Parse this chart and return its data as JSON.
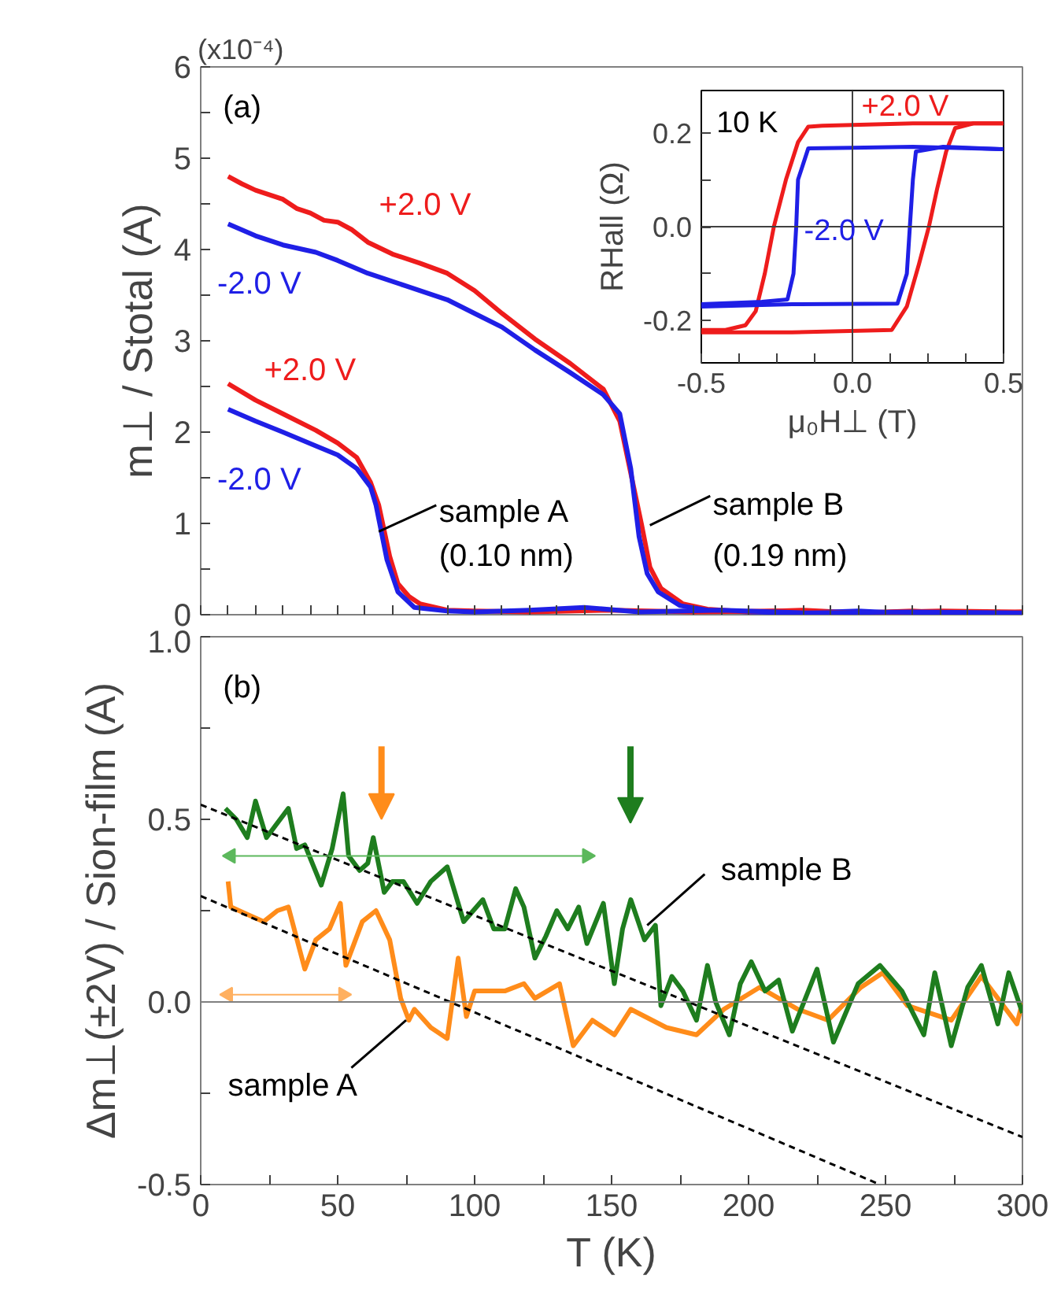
{
  "chart_data": [
    {
      "type": "line",
      "ylabel": "m⊥ / Stotal (A)",
      "xlim": [
        0,
        300
      ],
      "ylim": [
        0,
        6
      ],
      "xticks": [
        0,
        10,
        20,
        30,
        40,
        50,
        60,
        70,
        80,
        90,
        100,
        110,
        120,
        130,
        140,
        150,
        160,
        170,
        180,
        190,
        200,
        210,
        220,
        230,
        240,
        250,
        260,
        270,
        280,
        290,
        300
      ],
      "yticks": [
        0,
        {
          "value": 0.5,
          "label": null
        },
        1,
        {
          "value": 1.5,
          "label": null
        },
        2,
        {
          "value": 2.5,
          "label": null
        },
        3,
        {
          "value": 3.5,
          "label": null
        },
        4,
        {
          "value": 4.5,
          "label": null
        },
        5,
        {
          "value": 5.5,
          "label": null
        },
        6
      ],
      "tick_labels": "y",
      "series": [
        {
          "name": "+2.0 V",
          "color": "#ee1c1c",
          "x": [
            10,
            15,
            20,
            25,
            30,
            35,
            40,
            45,
            50,
            55,
            61,
            70,
            80,
            90,
            100,
            110,
            122,
            135,
            147,
            153,
            157,
            161,
            164,
            168,
            176,
            185,
            200,
            220,
            240,
            260,
            280,
            300
          ],
          "values": [
            4.8,
            4.72,
            4.65,
            4.6,
            4.55,
            4.45,
            4.4,
            4.32,
            4.3,
            4.22,
            4.08,
            3.95,
            3.85,
            3.74,
            3.55,
            3.3,
            3.02,
            2.75,
            2.47,
            2.12,
            1.55,
            0.98,
            0.52,
            0.29,
            0.12,
            0.06,
            0.03,
            0.05,
            0.02,
            0.04,
            0.0,
            0.03
          ]
        },
        {
          "name": "-2.0 V",
          "color": "#1f1fe6",
          "x": [
            10,
            20,
            30,
            42,
            50,
            61,
            75,
            90,
            100,
            110,
            122,
            135,
            147,
            153,
            157,
            160,
            163,
            167,
            175,
            185,
            200,
            220,
            240,
            260,
            280,
            300
          ],
          "values": [
            4.28,
            4.15,
            4.05,
            3.97,
            3.88,
            3.74,
            3.6,
            3.45,
            3.3,
            3.15,
            2.9,
            2.65,
            2.41,
            2.2,
            1.6,
            0.86,
            0.45,
            0.25,
            0.1,
            0.05,
            0.03,
            0.02,
            0.04,
            0.01,
            0.03,
            0.0
          ]
        },
        {
          "name": "+2.0 V",
          "color": "#ee1c1c",
          "x": [
            10,
            20,
            30,
            42,
            50,
            57,
            62,
            65,
            69,
            72,
            76,
            80,
            90,
            100,
            120,
            150,
            180,
            210,
            240,
            270,
            300
          ],
          "values": [
            2.53,
            2.35,
            2.2,
            2.02,
            1.88,
            1.72,
            1.45,
            1.2,
            0.64,
            0.34,
            0.2,
            0.12,
            0.05,
            0.04,
            0.03,
            0.05,
            0.03,
            0.04,
            0.02,
            0.04,
            0.03
          ]
        },
        {
          "name": "-2.0 V",
          "color": "#1f1fe6",
          "x": [
            10,
            20,
            30,
            42,
            50,
            57,
            62,
            64,
            68,
            72,
            78,
            90,
            100,
            120,
            140,
            160,
            190,
            220,
            260,
            300
          ],
          "values": [
            2.25,
            2.12,
            2.0,
            1.85,
            1.75,
            1.6,
            1.4,
            1.2,
            0.6,
            0.25,
            0.08,
            0.04,
            0.03,
            0.05,
            0.08,
            0.03,
            0.05,
            0.02,
            0.03,
            0.02
          ]
        },
        {
          "color": "#000000",
          "x": [
            65,
            86
          ],
          "values": [
            0.91,
            1.2
          ]
        },
        {
          "color": "#000000",
          "x": [
            164,
            186
          ],
          "values": [
            0.98,
            1.3
          ]
        }
      ],
      "annotations": [
        "(x10⁻⁴)",
        "(a)",
        "sample A",
        "(0.10 nm)",
        "sample B",
        "(0.19 nm)"
      ]
    },
    {
      "type": "line",
      "xlabel": "μ₀H⊥ (T)",
      "ylabel": "RHall (Ω)",
      "xlim": [
        -0.5,
        0.5
      ],
      "ylim": [
        -0.29,
        0.29
      ],
      "xticks": [
        -0.5,
        {
          "value": -0.375,
          "label": null
        },
        {
          "value": -0.25,
          "label": null
        },
        {
          "value": -0.125,
          "label": null
        },
        {
          "value": 0,
          "label": "0.0"
        },
        {
          "value": 0.125,
          "label": null
        },
        {
          "value": 0.25,
          "label": null
        },
        {
          "value": 0.375,
          "label": null
        },
        0.5
      ],
      "yticks": [
        -0.2,
        {
          "value": -0.1,
          "label": null
        },
        {
          "value": 0,
          "label": "0.0"
        },
        {
          "value": 0.1,
          "label": null
        },
        0.2
      ],
      "ref_lines": [
        {
          "axis": "y",
          "value": 0,
          "color": "#404040"
        },
        {
          "axis": "x",
          "value": 0,
          "color": "#404040"
        }
      ],
      "series": [
        {
          "name": "+2.0 V",
          "color": "#ee1c1c",
          "x": [
            -0.5,
            -0.42,
            -0.354,
            -0.32,
            -0.29,
            -0.26,
            -0.22,
            -0.18,
            -0.146,
            -0.1,
            0.2,
            0.5
          ],
          "values": [
            -0.22,
            -0.22,
            -0.21,
            -0.18,
            -0.1,
            0.0,
            0.1,
            0.18,
            0.213,
            0.215,
            0.22,
            0.22
          ]
        },
        {
          "color": "#ee1c1c",
          "x": [
            -0.5,
            -0.2,
            0.13,
            0.18,
            0.22,
            0.253,
            0.28,
            0.31,
            0.34,
            0.4,
            0.5
          ],
          "values": [
            -0.225,
            -0.225,
            -0.22,
            -0.17,
            -0.08,
            0.0,
            0.08,
            0.16,
            0.21,
            0.22,
            0.22
          ]
        },
        {
          "name": "-2.0 V",
          "color": "#1f1fe6",
          "x": [
            -0.5,
            -0.3,
            -0.215,
            -0.195,
            -0.186,
            -0.18,
            -0.146,
            0.0,
            0.2,
            0.5
          ],
          "values": [
            -0.165,
            -0.16,
            -0.155,
            -0.1,
            0.0,
            0.1,
            0.167,
            0.168,
            0.17,
            0.165
          ]
        },
        {
          "color": "#1f1fe6",
          "x": [
            -0.5,
            -0.2,
            0.149,
            0.18,
            0.19,
            0.2,
            0.21,
            0.3,
            0.5
          ],
          "values": [
            -0.17,
            -0.165,
            -0.164,
            -0.1,
            0.0,
            0.1,
            0.16,
            0.17,
            0.165
          ]
        }
      ],
      "annotations": [
        "10 K"
      ]
    },
    {
      "type": "line",
      "xlabel": "T (K)",
      "ylabel": "Δm⊥(±2V) / Sion-film (A)",
      "xlim": [
        0,
        300
      ],
      "ylim": [
        -0.5,
        1.0
      ],
      "xticks": [
        0,
        {
          "value": 25,
          "label": null
        },
        50,
        {
          "value": 75,
          "label": null
        },
        100,
        {
          "value": 125,
          "label": null
        },
        150,
        {
          "value": 175,
          "label": null
        },
        200,
        {
          "value": 225,
          "label": null
        },
        250,
        {
          "value": 275,
          "label": null
        },
        300
      ],
      "yticks": [
        -0.5,
        {
          "value": -0.25,
          "label": null
        },
        {
          "value": 0,
          "label": "0.0"
        },
        {
          "value": 0.25,
          "label": null
        },
        0.5,
        {
          "value": 0.75,
          "label": null
        },
        {
          "value": 1,
          "label": "1.0"
        }
      ],
      "ref_lines": [
        {
          "axis": "y",
          "value": 0,
          "color": "#808080"
        }
      ],
      "series": [
        {
          "color": "#ff8c1a",
          "x": [
            10,
            11,
            17,
            23,
            28,
            32,
            38,
            42,
            47,
            51,
            53,
            59,
            64,
            69,
            73,
            76,
            78,
            84,
            90,
            94,
            97,
            100,
            111,
            118,
            122,
            131,
            136,
            143,
            151,
            157,
            170,
            181,
            191,
            204,
            218,
            229,
            241,
            249,
            258,
            274,
            285,
            298,
            300
          ],
          "values": [
            0.33,
            0.26,
            0.24,
            0.22,
            0.25,
            0.26,
            0.09,
            0.17,
            0.2,
            0.27,
            0.1,
            0.22,
            0.25,
            0.17,
            0.01,
            -0.05,
            -0.02,
            -0.07,
            -0.1,
            0.12,
            -0.04,
            0.03,
            0.03,
            0.05,
            0.01,
            0.05,
            -0.12,
            -0.05,
            -0.09,
            -0.02,
            -0.07,
            -0.09,
            -0.02,
            0.04,
            -0.02,
            -0.05,
            0.04,
            0.08,
            -0.01,
            -0.05,
            0.07,
            -0.06,
            0.0
          ]
        },
        {
          "color": "#1e7d1e",
          "x": [
            9,
            13,
            17,
            20,
            24,
            27,
            32,
            35,
            38,
            44,
            48,
            52,
            54,
            58,
            61,
            63,
            67,
            70,
            74,
            79,
            84,
            90,
            96,
            103,
            107,
            111,
            115,
            118,
            122,
            126,
            130,
            134,
            138,
            141,
            147,
            151,
            154,
            157,
            162,
            166,
            168,
            172,
            176,
            181,
            185,
            188,
            193,
            197,
            201,
            206,
            211,
            216,
            225,
            231,
            240,
            248,
            256,
            264,
            268,
            274,
            280,
            285,
            291,
            295,
            300
          ],
          "values": [
            0.53,
            0.5,
            0.45,
            0.55,
            0.45,
            0.48,
            0.53,
            0.42,
            0.43,
            0.32,
            0.42,
            0.57,
            0.4,
            0.36,
            0.38,
            0.45,
            0.3,
            0.33,
            0.33,
            0.27,
            0.33,
            0.37,
            0.22,
            0.28,
            0.2,
            0.2,
            0.31,
            0.26,
            0.12,
            0.18,
            0.25,
            0.2,
            0.26,
            0.16,
            0.27,
            0.05,
            0.2,
            0.28,
            0.17,
            0.21,
            -0.01,
            0.07,
            0.03,
            -0.05,
            0.1,
            0.0,
            -0.09,
            0.05,
            0.11,
            0.03,
            0.06,
            -0.08,
            0.09,
            -0.11,
            0.05,
            0.1,
            0.03,
            -0.09,
            0.08,
            -0.12,
            0.04,
            0.1,
            -0.06,
            0.08,
            -0.03
          ]
        },
        {
          "color": "#000000",
          "line_style": "dashed",
          "x": [
            0,
            300
          ],
          "values": [
            0.54,
            -0.37
          ]
        },
        {
          "color": "#000000",
          "line_style": "dashed",
          "x": [
            0,
            248
          ],
          "values": [
            0.29,
            -0.5
          ]
        },
        {
          "color": "#000000",
          "x": [
            163,
            184
          ],
          "values": [
            0.21,
            0.35
          ]
        },
        {
          "color": "#000000",
          "x": [
            75,
            55
          ],
          "values": [
            -0.05,
            -0.18
          ]
        },
        {
          "color": "#5cb85c",
          "marker": "triangle",
          "x": [
            11,
            141
          ],
          "values": [
            0.4,
            0.4
          ]
        },
        {
          "color": "#ffb060",
          "marker": "triangle",
          "x": [
            10,
            52
          ],
          "values": [
            0.02,
            0.02
          ]
        }
      ],
      "annotations": [
        "(b)",
        "sample B",
        "sample A"
      ]
    }
  ]
}
